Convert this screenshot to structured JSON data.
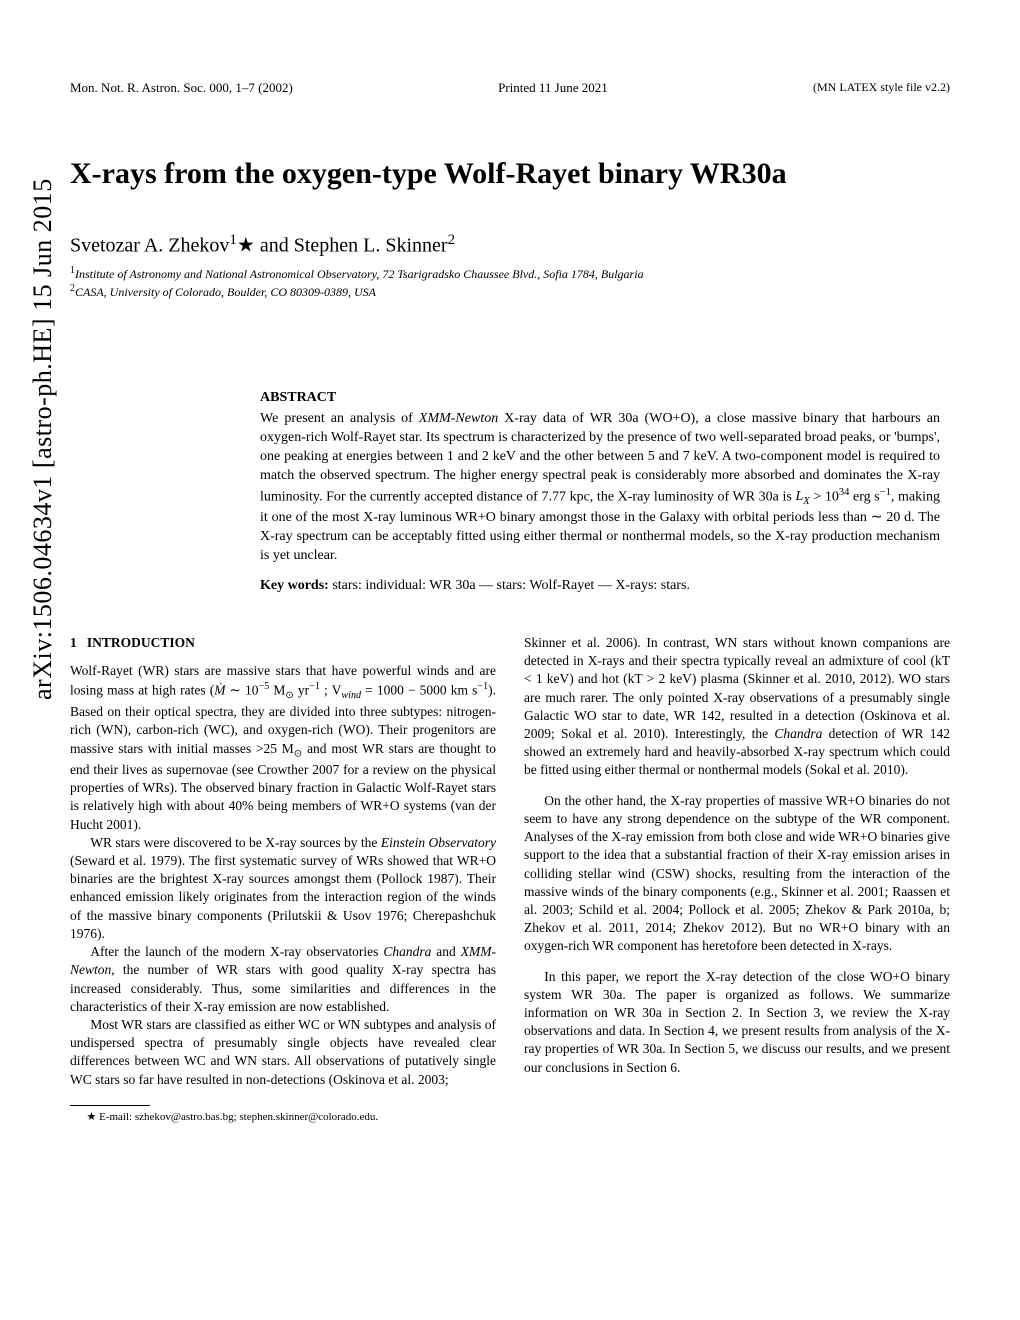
{
  "arxiv_stamp": "arXiv:1506.04634v1  [astro-ph.HE]  15 Jun 2015",
  "header": {
    "left": "Mon. Not. R. Astron. Soc. 000, 1–7 (2002)",
    "mid": "Printed 11 June 2021",
    "right": "(MN LATEX style file v2.2)"
  },
  "title": "X-rays from the oxygen-type Wolf-Rayet binary WR30a",
  "authors_html": "Svetozar A. Zhekov<sup>1</sup>★ and Stephen L. Skinner<sup>2</sup>",
  "affil": {
    "a1": "Institute of Astronomy and National Astronomical Observatory, 72 Tsarigradsko Chaussee Blvd., Sofia 1784, Bulgaria",
    "a2": "CASA, University of Colorado, Boulder, CO 80309-0389, USA"
  },
  "abstract": {
    "heading": "ABSTRACT",
    "text_html": "We present an analysis of <i>XMM-Newton</i> X-ray data of WR 30a (WO+O), a close massive binary that harbours an oxygen-rich Wolf-Rayet star. Its spectrum is characterized by the presence of two well-separated broad peaks, or 'bumps', one peaking at energies between 1 and 2 keV and the other between 5 and 7 keV. A two-component model is required to match the observed spectrum. The higher energy spectral peak is considerably more absorbed and dominates the X-ray luminosity. For the currently accepted distance of 7.77 kpc, the X-ray luminosity of WR 30a is <i>L<sub>X</sub></i> > 10<sup>34</sup> erg s<sup>−1</sup>, making it one of the most X-ray luminous WR+O binary amongst those in the Galaxy with orbital periods less than ∼ 20 d. The X-ray spectrum can be acceptably fitted using either thermal or nonthermal models, so the X-ray production mechanism is yet unclear.",
    "keywords_label": "Key words:",
    "keywords": "stars: individual: WR 30a — stars: Wolf-Rayet — X-rays: stars."
  },
  "section1": {
    "number": "1",
    "title": "INTRODUCTION"
  },
  "left_col": {
    "p1_html": "Wolf-Rayet (WR) stars are massive stars that have powerful winds and are losing mass at high rates (<i>Ṁ</i> ∼ 10<sup>−5</sup> M<sub>⊙</sub> yr<sup>−1</sup> ; V<sub><i>wind</i></sub> = 1000 − 5000 km s<sup>−1</sup>). Based on their optical spectra, they are divided into three subtypes: nitrogen-rich (WN), carbon-rich (WC), and oxygen-rich (WO). Their progenitors are massive stars with initial masses >25 M<sub>⊙</sub> and most WR stars are thought to end their lives as supernovae (see Crowther 2007 for a review on the physical properties of WRs). The observed binary fraction in Galactic Wolf-Rayet stars is relatively high with about 40% being members of WR+O systems (van der Hucht 2001).",
    "p2_html": "WR stars were discovered to be X-ray sources by the <i>Einstein Observatory</i> (Seward et al. 1979). The first systematic survey of WRs showed that WR+O binaries are the brightest X-ray sources amongst them (Pollock 1987). Their enhanced emission likely originates from the interaction region of the winds of the massive binary components (Prilutskii & Usov 1976; Cherepashchuk 1976).",
    "p3_html": "After the launch of the modern X-ray observatories <i>Chandra</i> and <i>XMM-Newton</i>, the number of WR stars with good quality X-ray spectra has increased considerably. Thus, some similarities and differences in the characteristics of their X-ray emission are now established.",
    "p4_html": "Most WR stars are classified as either WC or WN subtypes and analysis of undispersed spectra of presumably single objects have revealed clear differences between WC and WN stars. All observations of putatively single WC stars so far have resulted in non-detections (Oskinova et al. 2003;"
  },
  "right_col": {
    "p1_html": "Skinner et al. 2006). In contrast, WN stars without known companions are detected in X-rays and their spectra typically reveal an admixture of cool (kT < 1 keV) and hot (kT > 2 keV) plasma (Skinner et al. 2010, 2012). WO stars are much rarer. The only pointed X-ray observations of a presumably single Galactic WO star to date, WR 142, resulted in a detection (Oskinova et al. 2009; Sokal et al. 2010). Interestingly, the <i>Chandra</i> detection of WR 142 showed an extremely hard and heavily-absorbed X-ray spectrum which could be fitted using either thermal or nonthermal models (Sokal et al. 2010).",
    "p2_html": "On the other hand, the X-ray properties of massive WR+O binaries do not seem to have any strong dependence on the subtype of the WR component. Analyses of the X-ray emission from both close and wide WR+O binaries give support to the idea that a substantial fraction of their X-ray emission arises in colliding stellar wind (CSW) shocks, resulting from the interaction of the massive winds of the binary components (e.g., Skinner et al. 2001; Raassen et al. 2003; Schild et al. 2004; Pollock et al. 2005; Zhekov & Park 2010a, b; Zhekov et al. 2011, 2014; Zhekov 2012). But no WR+O binary with an oxygen-rich WR component has heretofore been detected in X-rays.",
    "p3_html": "In this paper, we report the X-ray detection of the close WO+O binary system WR 30a. The paper is organized as follows. We summarize information on WR 30a in Section 2. In Section 3, we review the X-ray observations and data. In Section 4, we present results from analysis of the X-ray properties of WR 30a. In Section 5, we discuss our results, and we present our conclusions in Section 6."
  },
  "footnote": "★ E-mail: szhekov@astro.bas.bg; stephen.skinner@colorado.edu.",
  "colors": {
    "text": "#000000",
    "background": "#ffffff"
  },
  "fonts": {
    "body_family": "Times New Roman, serif",
    "title_size_pt": 22,
    "author_size_pt": 15,
    "body_size_pt": 10,
    "abstract_size_pt": 10.5
  }
}
